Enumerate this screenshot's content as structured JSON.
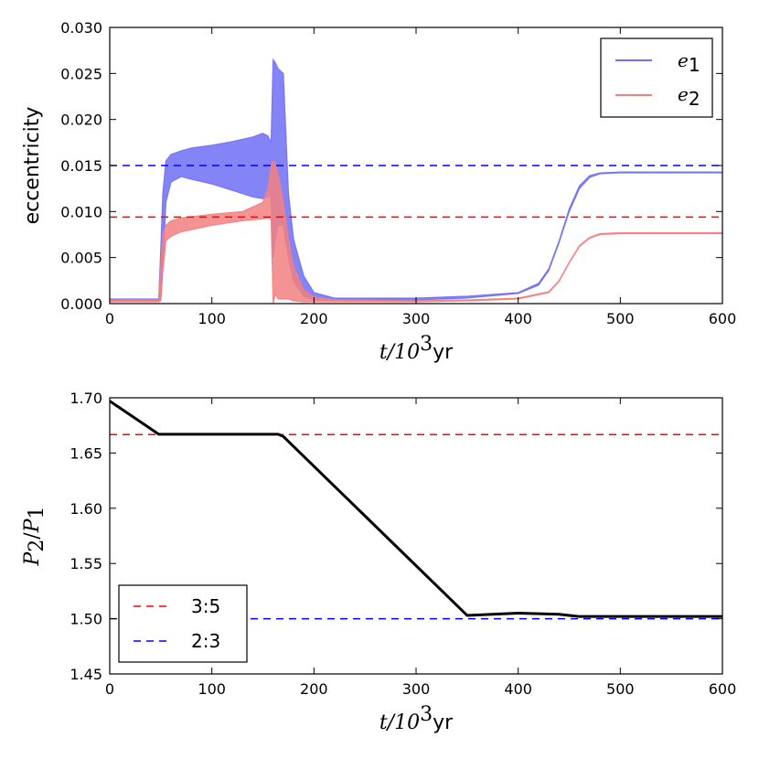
{
  "chart_data": [
    {
      "type": "area",
      "title": "",
      "xlabel_math": "t/10",
      "xlabel_sup": "3",
      "xlabel_unit": "yr",
      "ylabel": "eccentricity",
      "xlim": [
        0,
        600
      ],
      "ylim": [
        0,
        0.03
      ],
      "xticks": [
        0,
        100,
        200,
        300,
        400,
        500,
        600
      ],
      "yticks": [
        "0.000",
        "0.005",
        "0.010",
        "0.015",
        "0.020",
        "0.025",
        "0.030"
      ],
      "legend_position": "top-right",
      "series": [
        {
          "name": "e1",
          "label_main": "e",
          "label_sub": "1",
          "color": "#6f6ff5",
          "x": [
            0,
            2,
            48,
            50,
            52,
            55,
            60,
            70,
            80,
            100,
            120,
            140,
            150,
            155,
            158,
            160,
            162,
            165,
            170,
            175,
            180,
            190,
            200,
            220,
            300,
            350,
            400,
            420,
            430,
            440,
            450,
            460,
            470,
            480,
            500,
            600
          ],
          "upper": [
            0.0005,
            0.0005,
            0.0005,
            0.006,
            0.012,
            0.0155,
            0.0162,
            0.0166,
            0.0169,
            0.0172,
            0.0176,
            0.0181,
            0.0185,
            0.0182,
            0.0175,
            0.0265,
            0.0262,
            0.0255,
            0.025,
            0.012,
            0.007,
            0.003,
            0.0012,
            0.0006,
            0.0006,
            0.0008,
            0.0012,
            0.0022,
            0.0038,
            0.0068,
            0.0103,
            0.0128,
            0.0139,
            0.0142,
            0.0143,
            0.0143
          ],
          "lower": [
            0.0003,
            0.0003,
            0.0003,
            0.0004,
            0.004,
            0.011,
            0.0132,
            0.0138,
            0.0135,
            0.013,
            0.0123,
            0.0116,
            0.0114,
            0.0116,
            0.0118,
            0.005,
            0.007,
            0.0085,
            0.0085,
            0.005,
            0.0025,
            0.0008,
            0.0004,
            0.0004,
            0.0004,
            0.0006,
            0.0011,
            0.002,
            0.0036,
            0.0066,
            0.01,
            0.0125,
            0.0137,
            0.0141,
            0.0142,
            0.0142
          ]
        },
        {
          "name": "e2",
          "label_main": "e",
          "label_sub": "2",
          "color": "#f28080",
          "x": [
            0,
            2,
            48,
            50,
            52,
            55,
            60,
            70,
            100,
            130,
            150,
            155,
            158,
            160,
            162,
            165,
            170,
            175,
            180,
            190,
            200,
            220,
            300,
            350,
            400,
            430,
            440,
            450,
            460,
            470,
            480,
            500,
            600
          ],
          "upper": [
            0.0004,
            0.0004,
            0.0004,
            0.004,
            0.0075,
            0.0085,
            0.009,
            0.0093,
            0.0097,
            0.01,
            0.011,
            0.0125,
            0.015,
            0.0155,
            0.0153,
            0.014,
            0.011,
            0.007,
            0.004,
            0.0015,
            0.0007,
            0.0004,
            0.0003,
            0.0004,
            0.0006,
            0.0013,
            0.0025,
            0.0045,
            0.0063,
            0.0072,
            0.0076,
            0.0077,
            0.0077
          ],
          "lower": [
            0.0002,
            0.0002,
            0.0002,
            0.0003,
            0.0035,
            0.0068,
            0.0073,
            0.0078,
            0.0085,
            0.009,
            0.0092,
            0.0093,
            0.0092,
            0.0,
            0.001,
            0.0005,
            0.0005,
            0.0005,
            0.0003,
            0.0002,
            0.0002,
            0.0002,
            0.0002,
            0.0003,
            0.0005,
            0.0012,
            0.0024,
            0.0044,
            0.0062,
            0.0071,
            0.0075,
            0.0076,
            0.0076
          ]
        }
      ],
      "reference_lines": [
        {
          "y": 0.015,
          "color": "#0000ff",
          "style": "dashed"
        },
        {
          "y": 0.0094,
          "color": "#ff0000",
          "style": "dashed"
        }
      ]
    },
    {
      "type": "line",
      "title": "",
      "xlabel_math": "t/10",
      "xlabel_sup": "3",
      "xlabel_unit": "yr",
      "ylabel_main1": "P",
      "ylabel_sub1": "2",
      "ylabel_slash": "/",
      "ylabel_main2": "P",
      "ylabel_sub2": "1",
      "xlim": [
        0,
        600
      ],
      "ylim": [
        1.45,
        1.7
      ],
      "xticks": [
        0,
        100,
        200,
        300,
        400,
        500,
        600
      ],
      "yticks": [
        "1.45",
        "1.50",
        "1.55",
        "1.60",
        "1.65",
        "1.70"
      ],
      "legend_position": "bottom-left",
      "series": [
        {
          "name": "P2/P1",
          "color": "#000000",
          "x": [
            0,
            48,
            50,
            100,
            150,
            165,
            170,
            200,
            250,
            300,
            350,
            400,
            440,
            450,
            460,
            500,
            600
          ],
          "y": [
            1.697,
            1.667,
            1.667,
            1.667,
            1.667,
            1.667,
            1.665,
            1.638,
            1.593,
            1.548,
            1.503,
            1.505,
            1.504,
            1.503,
            1.502,
            1.502,
            1.502
          ]
        }
      ],
      "reference_lines": [
        {
          "y": 1.6667,
          "color": "#ff0000",
          "style": "dashed",
          "label": "3:5"
        },
        {
          "y": 1.5,
          "color": "#0000ff",
          "style": "dashed",
          "label": "2:3"
        }
      ]
    }
  ]
}
